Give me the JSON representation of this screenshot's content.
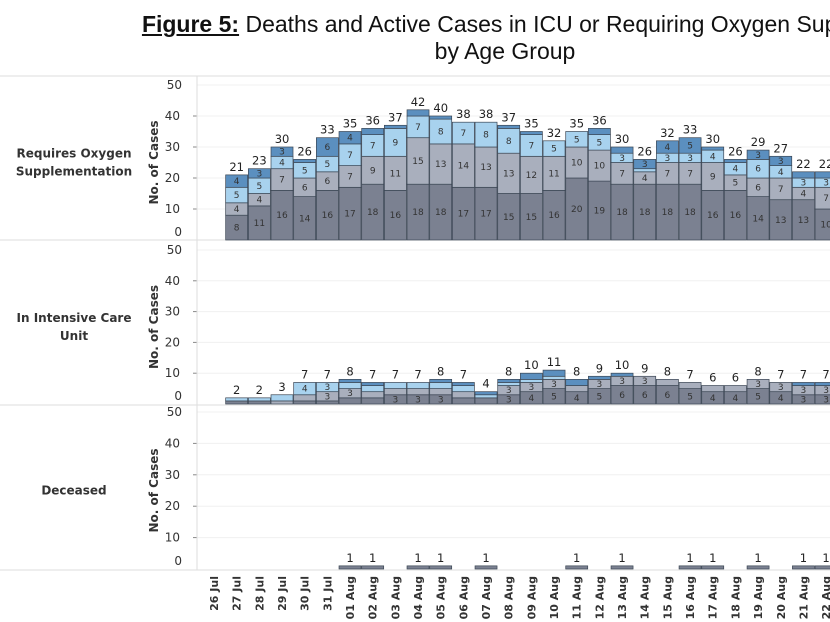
{
  "title": {
    "figure_label": "Figure 5:",
    "line1": "Deaths and Active Cases in ICU or Requiring Oxygen Supple",
    "line2": "by Age Group"
  },
  "colors": {
    "seg1": "#7b8191",
    "seg2": "#a9afbd",
    "seg3": "#a8d2ee",
    "seg4": "#5b8fbf"
  },
  "chart_data": {
    "type": "bar",
    "stacked": true,
    "ylabel": "No. of Cases",
    "ylim": [
      0,
      50
    ],
    "yticks": [
      0,
      10,
      20,
      30,
      40,
      50
    ],
    "categories": [
      "26 Jul",
      "27 Jul",
      "28 Jul",
      "29 Jul",
      "30 Jul",
      "31 Jul",
      "01 Aug",
      "02 Aug",
      "03 Aug",
      "04 Aug",
      "05 Aug",
      "06 Aug",
      "07 Aug",
      "08 Aug",
      "09 Aug",
      "10 Aug",
      "11 Aug",
      "12 Aug",
      "13 Aug",
      "14 Aug",
      "15 Aug",
      "16 Aug",
      "17 Aug",
      "18 Aug",
      "19 Aug",
      "20 Aug",
      "21 Aug",
      "22 Aug"
    ],
    "panels": [
      {
        "label": "Requires Oxygen Supplementation",
        "segments": [
          null,
          [
            8,
            4,
            5,
            4
          ],
          [
            11,
            4,
            5,
            3
          ],
          [
            16,
            7,
            4,
            3
          ],
          [
            14,
            6,
            5,
            1
          ],
          [
            16,
            6,
            5,
            6
          ],
          [
            17,
            7,
            7,
            4
          ],
          [
            18,
            9,
            7,
            2
          ],
          [
            16,
            11,
            9,
            1
          ],
          [
            18,
            15,
            7,
            2
          ],
          [
            18,
            13,
            8,
            1
          ],
          [
            17,
            14,
            7,
            0
          ],
          [
            17,
            13,
            8,
            0
          ],
          [
            15,
            13,
            8,
            1
          ],
          [
            15,
            12,
            7,
            1
          ],
          [
            16,
            11,
            5,
            0
          ],
          [
            20,
            10,
            5,
            0
          ],
          [
            19,
            10,
            5,
            2
          ],
          [
            18,
            7,
            3,
            2
          ],
          [
            18,
            4,
            1,
            3
          ],
          [
            18,
            7,
            3,
            4
          ],
          [
            18,
            7,
            3,
            5
          ],
          [
            16,
            9,
            4,
            1
          ],
          [
            16,
            5,
            4,
            1
          ],
          [
            14,
            6,
            6,
            3
          ],
          [
            13,
            7,
            4,
            3
          ],
          [
            13,
            4,
            3,
            2
          ],
          [
            10,
            7,
            3,
            2
          ]
        ],
        "totals": [
          null,
          21,
          23,
          30,
          26,
          33,
          35,
          36,
          37,
          42,
          40,
          38,
          38,
          37,
          35,
          32,
          35,
          36,
          30,
          26,
          32,
          33,
          30,
          26,
          29,
          27,
          22,
          22
        ]
      },
      {
        "label": "In Intensive Care Unit",
        "segments": [
          null,
          [
            1,
            0,
            1,
            0
          ],
          [
            1,
            0,
            1,
            0
          ],
          [
            0,
            1,
            2,
            0
          ],
          [
            1,
            2,
            4,
            0
          ],
          [
            1,
            3,
            3,
            0
          ],
          [
            2,
            3,
            2,
            1
          ],
          [
            2,
            2,
            2,
            1
          ],
          [
            3,
            2,
            2,
            0
          ],
          [
            3,
            2,
            2,
            0
          ],
          [
            3,
            2,
            2,
            1
          ],
          [
            2,
            2,
            2,
            1
          ],
          [
            2,
            0,
            1,
            1
          ],
          [
            3,
            3,
            1,
            1
          ],
          [
            4,
            3,
            1,
            2
          ],
          [
            5,
            3,
            1,
            2
          ],
          [
            4,
            2,
            0,
            2
          ],
          [
            5,
            3,
            0,
            1
          ],
          [
            6,
            3,
            0,
            1
          ],
          [
            6,
            3,
            0,
            0
          ],
          [
            6,
            2,
            0,
            0
          ],
          [
            5,
            2,
            0,
            0
          ],
          [
            4,
            2,
            0,
            0
          ],
          [
            4,
            2,
            0,
            0
          ],
          [
            5,
            3,
            0,
            0
          ],
          [
            4,
            3,
            0,
            0
          ],
          [
            3,
            3,
            0,
            1
          ],
          [
            3,
            3,
            0,
            1
          ]
        ],
        "totals": [
          null,
          2,
          2,
          3,
          7,
          7,
          8,
          7,
          7,
          7,
          8,
          7,
          4,
          8,
          10,
          11,
          8,
          9,
          10,
          9,
          8,
          7,
          6,
          6,
          8,
          7,
          7,
          7
        ]
      },
      {
        "label": "Deceased",
        "segments": [
          null,
          null,
          null,
          null,
          null,
          null,
          [
            1,
            0,
            0,
            0
          ],
          [
            1,
            0,
            0,
            0
          ],
          null,
          [
            1,
            0,
            0,
            0
          ],
          [
            1,
            0,
            0,
            0
          ],
          null,
          [
            1,
            0,
            0,
            0
          ],
          null,
          null,
          null,
          [
            1,
            0,
            0,
            0
          ],
          null,
          [
            1,
            0,
            0,
            0
          ],
          null,
          null,
          [
            1,
            0,
            0,
            0
          ],
          [
            1,
            0,
            0,
            0
          ],
          null,
          [
            1,
            0,
            0,
            0
          ],
          null,
          [
            1,
            0,
            0,
            0
          ],
          [
            1,
            0,
            0,
            0
          ]
        ],
        "totals": [
          null,
          null,
          null,
          null,
          null,
          null,
          1,
          1,
          null,
          1,
          1,
          null,
          1,
          null,
          null,
          null,
          1,
          null,
          1,
          null,
          null,
          1,
          1,
          null,
          1,
          null,
          1,
          1
        ]
      }
    ]
  }
}
